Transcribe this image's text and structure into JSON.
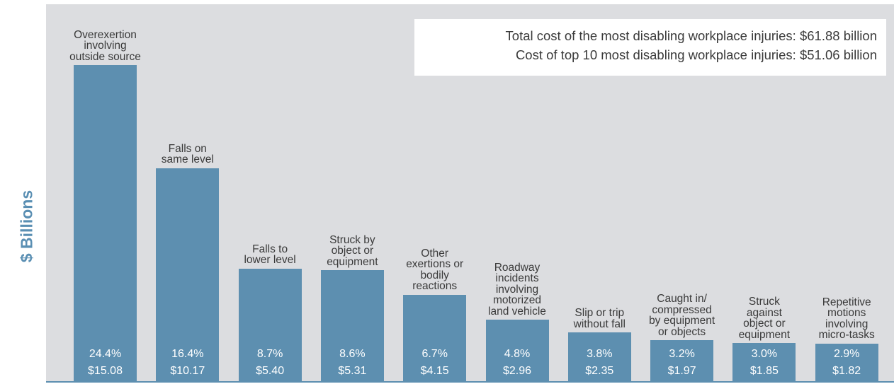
{
  "chart_data": {
    "type": "bar",
    "ylabel": "$ Billions",
    "ylim": [
      0,
      15.08
    ],
    "grid": false,
    "categories": [
      [
        "Overexertion",
        "involving",
        "outside source"
      ],
      [
        "Falls on",
        "same level"
      ],
      [
        "Falls to",
        "lower level"
      ],
      [
        "Struck by",
        "object or",
        "equipment"
      ],
      [
        "Other",
        "exertions or",
        "bodily",
        "reactions"
      ],
      [
        "Roadway",
        "incidents",
        "involving",
        "motorized",
        "land vehicle"
      ],
      [
        "Slip or trip",
        "without fall"
      ],
      [
        "Caught in/",
        "compressed",
        "by equipment",
        "or objects"
      ],
      [
        "Struck",
        "against",
        "object or",
        "equipment"
      ],
      [
        "Repetitive",
        "motions",
        "involving",
        "micro-tasks"
      ]
    ],
    "values": [
      15.08,
      10.17,
      5.4,
      5.31,
      4.15,
      2.96,
      2.35,
      1.97,
      1.85,
      1.82
    ],
    "percent_labels": [
      "24.4%",
      "16.4%",
      "8.7%",
      "8.6%",
      "6.7%",
      "4.8%",
      "3.8%",
      "3.2%",
      "3.0%",
      "2.9%"
    ],
    "value_labels": [
      "$15.08",
      "$10.17",
      "$5.40",
      "$5.31",
      "$4.15",
      "$2.96",
      "$2.35",
      "$1.97",
      "$1.85",
      "$1.82"
    ],
    "annotations": [
      "Total cost of the most disabling workplace injuries: $61.88 billion",
      "Cost of top 10 most disabling workplace injuries: $51.06 billion"
    ],
    "colors": {
      "bar": "#5d8fb0",
      "background": "#dcdde0",
      "axis_label": "#5a8fb3"
    }
  }
}
